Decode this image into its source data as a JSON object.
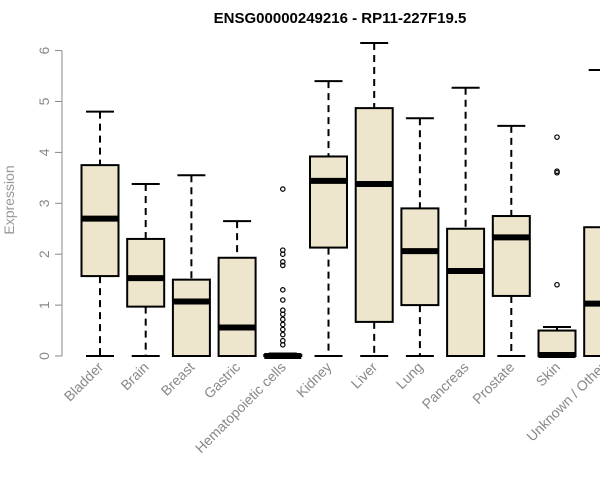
{
  "chart_data": {
    "type": "boxplot",
    "title": "ENSG00000249216 - RP11-227F19.5",
    "ylabel": "Expression",
    "xlabel": "",
    "ylim": [
      0,
      6.2
    ],
    "yticks": [
      0,
      1,
      2,
      3,
      4,
      5,
      6
    ],
    "box_fill": "#ede6cc",
    "categories": [
      "Bladder",
      "Brain",
      "Breast",
      "Gastric",
      "Hematopoietic cells",
      "Kidney",
      "Liver",
      "Lung",
      "Pancreas",
      "Prostate",
      "Skin",
      "Unknown / Other"
    ],
    "boxes": [
      {
        "min": 0,
        "q1": 1.57,
        "median": 2.7,
        "q3": 3.75,
        "max": 4.8,
        "outliers": []
      },
      {
        "min": 0,
        "q1": 0.97,
        "median": 1.53,
        "q3": 2.3,
        "max": 3.38,
        "outliers": []
      },
      {
        "min": 0,
        "q1": 0,
        "median": 1.07,
        "q3": 1.5,
        "max": 3.55,
        "outliers": []
      },
      {
        "min": 0,
        "q1": 0,
        "median": 0.56,
        "q3": 1.93,
        "max": 2.65,
        "outliers": []
      },
      {
        "min": 0,
        "q1": 0,
        "median": 0,
        "q3": 0.02,
        "max": 0.05,
        "outliers": [
          0.22,
          0.3,
          0.42,
          0.52,
          0.62,
          0.72,
          0.82,
          0.9,
          1.1,
          1.3,
          1.78,
          1.85,
          2.0,
          2.08,
          3.28
        ]
      },
      {
        "min": 0,
        "q1": 2.13,
        "median": 3.44,
        "q3": 3.92,
        "max": 5.4,
        "outliers": []
      },
      {
        "min": 0,
        "q1": 0.67,
        "median": 3.38,
        "q3": 4.87,
        "max": 6.15,
        "outliers": []
      },
      {
        "min": 0,
        "q1": 1.0,
        "median": 2.06,
        "q3": 2.9,
        "max": 4.67,
        "outliers": []
      },
      {
        "min": 0,
        "q1": 0,
        "median": 1.67,
        "q3": 2.5,
        "max": 5.27,
        "outliers": []
      },
      {
        "min": 0,
        "q1": 1.18,
        "median": 2.33,
        "q3": 2.75,
        "max": 4.52,
        "outliers": []
      },
      {
        "min": 0,
        "q1": 0,
        "median": 0.02,
        "q3": 0.5,
        "max": 0.57,
        "outliers": [
          1.4,
          3.6,
          3.63,
          4.3
        ]
      },
      {
        "min": 0,
        "q1": 0,
        "median": 1.03,
        "q3": 2.53,
        "max": 5.62,
        "outliers": []
      }
    ]
  }
}
